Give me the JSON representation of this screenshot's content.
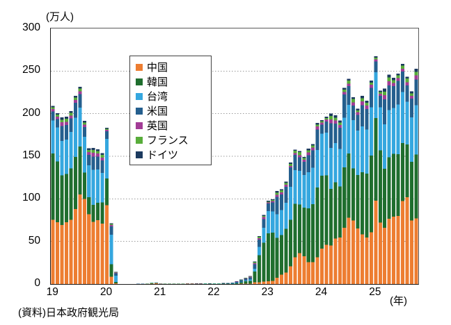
{
  "axis": {
    "y_unit": "(万人)",
    "x_unit": "(年)",
    "y_ticks": [
      300,
      250,
      200,
      150,
      100,
      50,
      0
    ],
    "x_ticks": [
      "19",
      "20",
      "21",
      "22",
      "23",
      "24",
      "25"
    ]
  },
  "source": "(資料)日本政府観光局",
  "chart_data": {
    "type": "bar",
    "stacked": true,
    "ylabel": "(万人)",
    "xlabel": "(年)",
    "ylim": [
      0,
      300
    ],
    "gridlines": [
      50,
      100,
      150,
      200,
      250
    ],
    "legend_position": "upper-center-left",
    "frequency": "monthly",
    "x": [
      "19-01",
      "19-02",
      "19-03",
      "19-04",
      "19-05",
      "19-06",
      "19-07",
      "19-08",
      "19-09",
      "19-10",
      "19-11",
      "19-12",
      "20-01",
      "20-02",
      "20-03",
      "20-04",
      "20-05",
      "20-06",
      "20-07",
      "20-08",
      "20-09",
      "20-10",
      "20-11",
      "20-12",
      "21-01",
      "21-02",
      "21-03",
      "21-04",
      "21-05",
      "21-06",
      "21-07",
      "21-08",
      "21-09",
      "21-10",
      "21-11",
      "21-12",
      "22-01",
      "22-02",
      "22-03",
      "22-04",
      "22-05",
      "22-06",
      "22-07",
      "22-08",
      "22-09",
      "22-10",
      "22-11",
      "22-12",
      "23-01",
      "23-02",
      "23-03",
      "23-04",
      "23-05",
      "23-06",
      "23-07",
      "23-08",
      "23-09",
      "23-10",
      "23-11",
      "23-12",
      "24-01",
      "24-02",
      "24-03",
      "24-04",
      "24-05",
      "24-06",
      "24-07",
      "24-08",
      "24-09",
      "24-10",
      "24-11",
      "24-12",
      "25-01",
      "25-02",
      "25-03",
      "25-04",
      "25-05",
      "25-06",
      "25-07",
      "25-08",
      "25-09",
      "25-10"
    ],
    "series": [
      {
        "name": "中国",
        "color": "#ED7D31",
        "values": [
          75.4,
          72.4,
          69.1,
          72.6,
          75.6,
          88.1,
          105.1,
          100.0,
          81.9,
          73.1,
          75.0,
          71.0,
          92.4,
          8.7,
          1.0,
          0.0,
          0.0,
          0.0,
          0.1,
          0.1,
          0.1,
          0.2,
          0.6,
          0.7,
          0.4,
          0.2,
          0.2,
          0.2,
          0.2,
          0.2,
          0.3,
          0.3,
          0.2,
          0.2,
          0.1,
          0.1,
          0.1,
          0.1,
          0.2,
          0.2,
          0.2,
          0.2,
          0.3,
          0.4,
          0.5,
          2.2,
          2.2,
          2.9,
          3.1,
          3.6,
          7.5,
          10.9,
          13.4,
          20.8,
          31.3,
          36.4,
          32.5,
          25.6,
          25.8,
          31.2,
          41.6,
          45.9,
          45.2,
          53.3,
          54.5,
          66.1,
          77.7,
          74.6,
          65.2,
          58.2,
          54.7,
          60.9,
          98.0,
          72.2,
          66.1,
          76.6,
          78.9,
          79.8,
          97.5,
          101.8,
          74.7,
          77.0
        ]
      },
      {
        "name": "韓国",
        "color": "#1F6E2E",
        "values": [
          77.9,
          71.5,
          58.6,
          56.7,
          60.3,
          61.1,
          56.2,
          30.9,
          20.1,
          19.7,
          20.5,
          24.8,
          31.7,
          14.4,
          1.6,
          0.0,
          0.0,
          0.0,
          0.0,
          0.1,
          0.1,
          0.1,
          0.4,
          0.5,
          0.2,
          0.1,
          0.1,
          0.1,
          0.1,
          0.1,
          0.1,
          0.1,
          0.1,
          0.1,
          0.1,
          0.2,
          0.1,
          0.1,
          0.2,
          0.3,
          0.4,
          0.8,
          1.8,
          2.7,
          3.3,
          12.3,
          31.5,
          45.7,
          56.5,
          56.9,
          46.6,
          46.7,
          51.6,
          54.5,
          62.7,
          56.9,
          57.1,
          63.1,
          67.8,
          82.0,
          85.7,
          81.8,
          66.3,
          66.1,
          60.2,
          70.7,
          75.7,
          61.2,
          62.6,
          73.2,
          75.0,
          90.0,
          96.7,
          84.7,
          69.1,
          72.1,
          74.0,
          72.5,
          67.8,
          61.9,
          68.8,
          75.0
        ]
      },
      {
        "name": "台湾",
        "color": "#35A7DF",
        "values": [
          38.7,
          40.0,
          40.2,
          40.3,
          42.7,
          46.2,
          45.9,
          42.0,
          37.6,
          41.4,
          39.2,
          34.8,
          46.1,
          34.7,
          7.3,
          0.0,
          0.0,
          0.0,
          0.0,
          0.0,
          0.0,
          0.1,
          0.1,
          0.1,
          0.1,
          0.0,
          0.0,
          0.0,
          0.0,
          0.0,
          0.1,
          0.1,
          0.1,
          0.1,
          0.1,
          0.1,
          0.1,
          0.1,
          0.1,
          0.1,
          0.2,
          0.3,
          0.5,
          1.0,
          1.6,
          3.5,
          9.9,
          17.5,
          25.9,
          24.8,
          27.8,
          29.1,
          30.3,
          38.9,
          39.7,
          39.6,
          38.5,
          42.5,
          43.0,
          44.2,
          49.2,
          50.2,
          48.4,
          45.9,
          44.0,
          58.4,
          57.1,
          56.4,
          52.2,
          53.5,
          51.5,
          56.5,
          53.8,
          50.5,
          52.5,
          55.6,
          53.7,
          58.5,
          60.3,
          50.4,
          52.2,
          58.0
        ]
      },
      {
        "name": "米国",
        "color": "#255F8E",
        "values": [
          10.4,
          9.7,
          17.7,
          17.0,
          15.7,
          17.5,
          15.7,
          11.4,
          11.9,
          15.4,
          14.8,
          14.5,
          9.2,
          9.7,
          2.7,
          0.1,
          0.0,
          0.1,
          0.1,
          0.1,
          0.1,
          0.1,
          0.2,
          0.2,
          0.1,
          0.1,
          0.1,
          0.1,
          0.1,
          0.1,
          0.2,
          0.2,
          0.2,
          0.2,
          0.2,
          0.3,
          0.2,
          0.2,
          0.3,
          0.5,
          0.7,
          1.2,
          1.7,
          2.2,
          2.5,
          5.3,
          8.5,
          10.2,
          8.9,
          10.5,
          20.3,
          18.3,
          18.7,
          22.7,
          17.8,
          15.8,
          15.5,
          20.2,
          20.5,
          24.0,
          10.7,
          12.7,
          29.0,
          22.9,
          24.7,
          27.5,
          21.7,
          17.5,
          18.7,
          25.2,
          24.3,
          22.7,
          12.8,
          13.4,
          29.3,
          29.0,
          25.9,
          27.8,
          24.0,
          19.2,
          22.1,
          30.0
        ]
      },
      {
        "name": "英国",
        "color": "#A23C96",
        "values": [
          3.0,
          3.0,
          4.2,
          3.8,
          3.3,
          3.1,
          3.3,
          2.8,
          3.5,
          4.3,
          3.6,
          3.4,
          1.6,
          1.7,
          0.8,
          0.0,
          0.0,
          0.0,
          0.0,
          0.0,
          0.0,
          0.0,
          0.1,
          0.1,
          0.1,
          0.0,
          0.0,
          0.0,
          0.0,
          0.0,
          0.1,
          0.1,
          0.1,
          0.1,
          0.1,
          0.1,
          0.1,
          0.1,
          0.1,
          0.1,
          0.1,
          0.2,
          0.3,
          0.4,
          0.5,
          1.2,
          1.8,
          2.2,
          1.4,
          1.6,
          2.7,
          2.6,
          2.4,
          1.8,
          2.2,
          2.6,
          2.4,
          3.2,
          3.1,
          3.5,
          2.2,
          2.5,
          4.2,
          3.8,
          3.3,
          2.7,
          2.9,
          3.3,
          3.0,
          4.5,
          4.1,
          3.8,
          2.6,
          2.6,
          4.6,
          4.9,
          3.6,
          3.1,
          3.1,
          3.6,
          3.3,
          4.8
        ]
      },
      {
        "name": "フランス",
        "color": "#58AD3A",
        "values": [
          2.0,
          2.2,
          3.2,
          3.7,
          3.2,
          2.9,
          3.2,
          2.6,
          2.5,
          3.3,
          2.9,
          3.1,
          1.3,
          1.2,
          0.5,
          0.0,
          0.0,
          0.0,
          0.0,
          0.0,
          0.0,
          0.0,
          0.1,
          0.1,
          0.0,
          0.0,
          0.0,
          0.0,
          0.0,
          0.0,
          0.1,
          0.1,
          0.1,
          0.1,
          0.1,
          0.1,
          0.1,
          0.1,
          0.1,
          0.1,
          0.1,
          0.2,
          0.3,
          0.4,
          0.5,
          1.0,
          1.4,
          1.5,
          1.0,
          1.2,
          2.5,
          2.3,
          2.2,
          2.4,
          3.0,
          3.4,
          1.8,
          2.3,
          2.4,
          2.4,
          1.6,
          1.8,
          4.2,
          3.4,
          3.0,
          2.9,
          3.8,
          4.1,
          2.1,
          3.3,
          3.0,
          2.6,
          1.9,
          2.0,
          4.4,
          4.5,
          3.3,
          3.1,
          3.6,
          4.3,
          2.6,
          4.4
        ]
      },
      {
        "name": "ドイツ",
        "color": "#1C3A5F",
        "values": [
          1.7,
          1.9,
          2.6,
          2.3,
          2.1,
          2.0,
          2.1,
          1.7,
          2.0,
          2.4,
          2.2,
          1.9,
          1.0,
          1.0,
          0.4,
          0.0,
          0.0,
          0.0,
          0.0,
          0.0,
          0.0,
          0.0,
          0.1,
          0.1,
          0.0,
          0.0,
          0.0,
          0.0,
          0.0,
          0.0,
          0.0,
          0.1,
          0.1,
          0.1,
          0.1,
          0.1,
          0.1,
          0.1,
          0.1,
          0.1,
          0.1,
          0.2,
          0.2,
          0.3,
          0.4,
          0.8,
          1.1,
          1.2,
          0.9,
          1.0,
          1.7,
          1.4,
          1.5,
          1.4,
          1.2,
          1.3,
          1.4,
          1.9,
          1.8,
          1.7,
          1.4,
          1.6,
          3.0,
          2.6,
          2.4,
          2.1,
          1.9,
          2.0,
          2.1,
          3.0,
          2.6,
          2.2,
          1.7,
          1.8,
          3.4,
          3.2,
          2.6,
          2.3,
          2.1,
          2.2,
          2.4,
          3.4
        ]
      }
    ]
  }
}
